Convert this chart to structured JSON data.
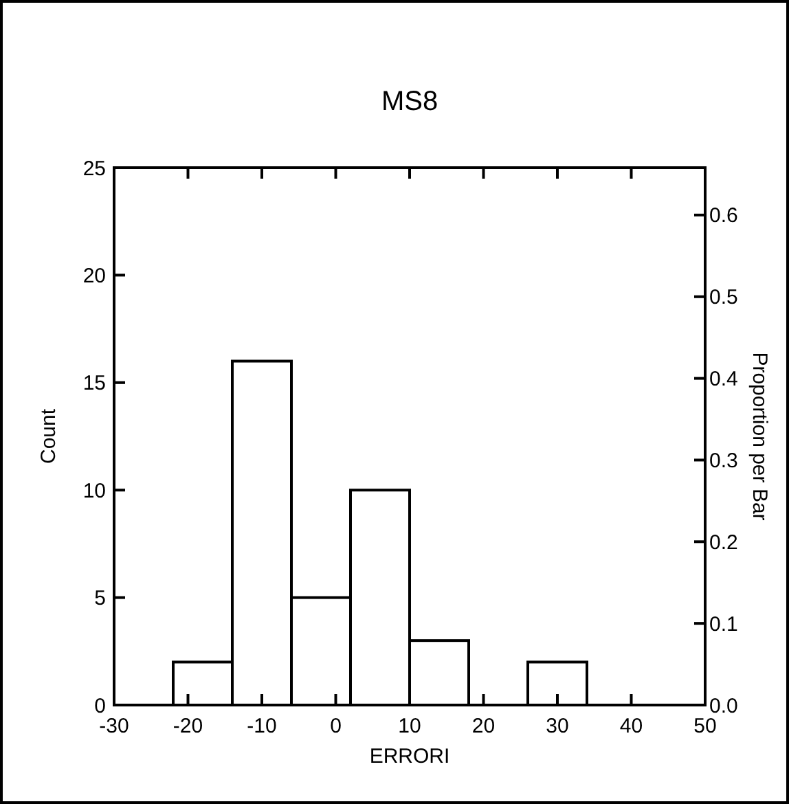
{
  "chart_data": {
    "type": "histogram",
    "title": "MS8",
    "xlabel": "ERRORI",
    "ylabel": "Count",
    "y2label": "Proportion per Bar",
    "bins": [
      -22,
      -14,
      -6,
      2,
      10,
      18,
      26,
      34
    ],
    "values": [
      2,
      16,
      5,
      10,
      3,
      0,
      2
    ],
    "color": "#ffffff",
    "xlim": [
      -30,
      50
    ],
    "xticks": [
      -30,
      -20,
      -10,
      0,
      10,
      20,
      30,
      40,
      50
    ],
    "ylim": [
      0,
      25
    ],
    "yticks": [
      0,
      5,
      10,
      15,
      20,
      25
    ],
    "y2lim": [
      0,
      0.658
    ],
    "y2ticks": [
      {
        "value": 0,
        "label": "0.0"
      },
      0.1,
      0.2,
      0.3,
      0.4,
      0.5,
      0.6
    ],
    "grid": false
  }
}
